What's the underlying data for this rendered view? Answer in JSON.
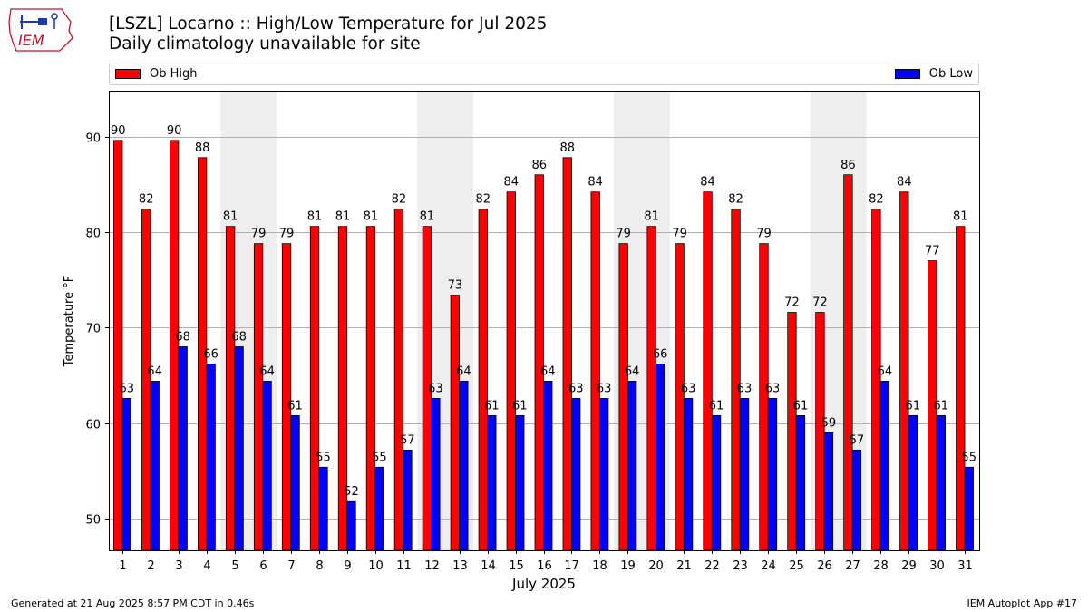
{
  "title": {
    "line1": "[LSZL] Locarno :: High/Low Temperature for Jul 2025",
    "line2": "Daily climatology unavailable for site"
  },
  "logo_text": "IEM",
  "footer": {
    "generated": "Generated at 21 Aug 2025 8:57 PM CDT in 0.46s",
    "app": "IEM Autoplot App #17"
  },
  "colors": {
    "high": "#ff0000",
    "low": "#0000ff",
    "weekend_band": "#eeeeee",
    "grid": "#b0b0b0"
  },
  "chart_data": {
    "type": "bar",
    "xlabel": "July 2025",
    "ylabel": "Temperature °F",
    "ylim": [
      46.7,
      94.8
    ],
    "yticks": [
      50,
      60,
      70,
      80,
      90
    ],
    "grid": "horizontal",
    "legend_placement": "top",
    "categories": [
      "1",
      "2",
      "3",
      "4",
      "5",
      "6",
      "7",
      "8",
      "9",
      "10",
      "11",
      "12",
      "13",
      "14",
      "15",
      "16",
      "17",
      "18",
      "19",
      "20",
      "21",
      "22",
      "23",
      "24",
      "25",
      "26",
      "27",
      "28",
      "29",
      "30",
      "31"
    ],
    "weekend_bands": [
      [
        "5",
        "6"
      ],
      [
        "12",
        "13"
      ],
      [
        "19",
        "20"
      ],
      [
        "26",
        "27"
      ]
    ],
    "series": [
      {
        "name": "Ob High",
        "values": [
          90,
          82,
          90,
          88,
          81,
          79,
          79,
          81,
          81,
          81,
          82,
          81,
          73,
          82,
          84,
          86,
          88,
          84,
          79,
          81,
          79,
          84,
          82,
          79,
          72,
          72,
          86,
          82,
          84,
          77,
          81
        ],
        "plot_values": [
          89.6,
          82.4,
          89.6,
          87.8,
          80.6,
          78.8,
          78.8,
          80.6,
          80.6,
          80.6,
          82.4,
          80.6,
          73.4,
          82.4,
          84.2,
          86.0,
          87.8,
          84.2,
          78.8,
          80.6,
          78.8,
          84.2,
          82.4,
          78.8,
          71.6,
          71.6,
          86.0,
          82.4,
          84.2,
          77.0,
          80.6
        ]
      },
      {
        "name": "Ob Low",
        "values": [
          63,
          64,
          68,
          66,
          68,
          64,
          61,
          55,
          52,
          55,
          57,
          63,
          64,
          61,
          61,
          64,
          63,
          63,
          64,
          66,
          63,
          61,
          63,
          63,
          61,
          59,
          57,
          64,
          61,
          61,
          55
        ],
        "plot_values": [
          62.6,
          64.4,
          68.0,
          66.2,
          68.0,
          64.4,
          60.8,
          55.4,
          51.8,
          55.4,
          57.2,
          62.6,
          64.4,
          60.8,
          60.8,
          64.4,
          62.6,
          62.6,
          64.4,
          66.2,
          62.6,
          60.8,
          62.6,
          62.6,
          60.8,
          59.0,
          57.2,
          64.4,
          60.8,
          60.8,
          55.4
        ]
      }
    ]
  }
}
